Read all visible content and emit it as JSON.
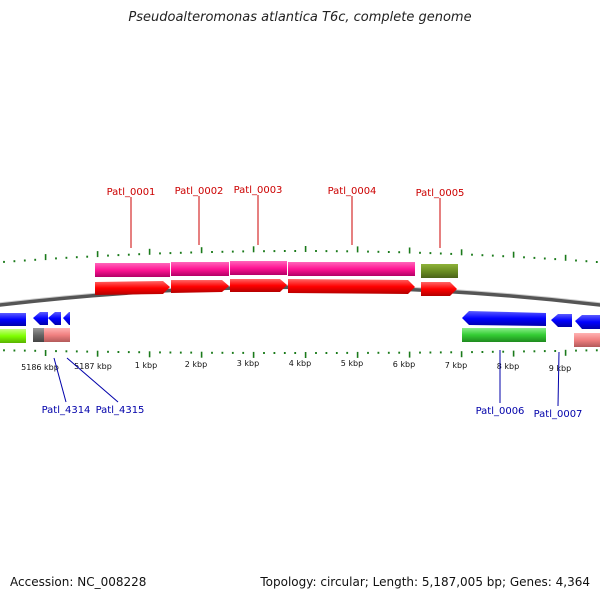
{
  "title": "Pseudoalteromonas atlantica T6c, complete genome",
  "footer": {
    "accession": "Accession: NC_008228",
    "summary": "Topology: circular; Length: 5,187,005 bp; Genes: 4,364"
  },
  "scale_labels": [
    "5186 kbp",
    "5187 kbp",
    "1 kbp",
    "2 kbp",
    "3 kbp",
    "4 kbp",
    "5 kbp",
    "6 kbp",
    "7 kbp",
    "8 kbp",
    "9 kbp"
  ],
  "gene_labels_top": [
    "Patl_0001",
    "Patl_0002",
    "Patl_0003",
    "Patl_0004",
    "Patl_0005"
  ],
  "gene_labels_bottom": [
    "Patl_4314",
    "Patl_4315",
    "Patl_0006",
    "Patl_0007"
  ],
  "colors": {
    "forward_gene": "#ff0000",
    "forward_cds": "#ff1493",
    "forward_cds_alt": "#6b8e23",
    "reverse_gene": "#0000ff",
    "reverse_cds": "#33cc33",
    "reverse_cds_alt": "#7fff00",
    "reverse_cds_pink": "#f08080",
    "reverse_cds_gray": "#666666",
    "tick": "#1a7a1a",
    "label_top": "#cc0000",
    "label_bottom": "#0000aa",
    "backbone": "#888888"
  }
}
